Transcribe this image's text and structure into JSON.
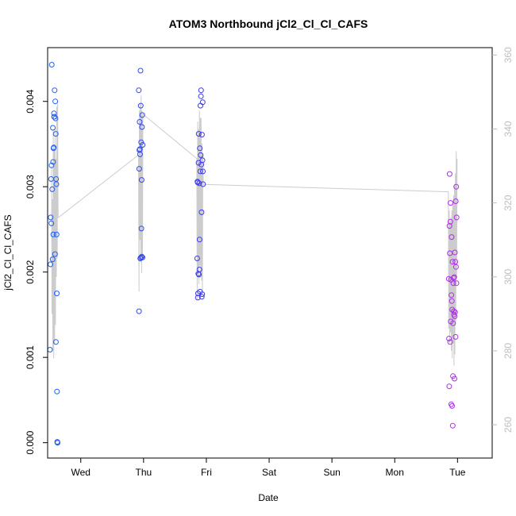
{
  "chart_data": {
    "type": "scatter",
    "title": "ATOM3 Northbound jCl2_Cl_Cl_CAFS",
    "xlabel": "Date",
    "ylabel": "jCl2_Cl_Cl_CAFS",
    "x_ticks": [
      "Wed",
      "Thu",
      "Fri",
      "Sat",
      "Sun",
      "Mon",
      "Tue"
    ],
    "xlim": [
      "2017-10-10T11:20",
      "2017-10-17T13:15"
    ],
    "ylim": [
      -0.00018,
      0.00463
    ],
    "y_ticks": [
      0.0,
      0.001,
      0.002,
      0.003,
      0.004
    ],
    "y_tick_labels": [
      "0.000",
      "0.001",
      "0.002",
      "0.003",
      "0.004"
    ],
    "y2lim": [
      251,
      362
    ],
    "y2_ticks": [
      260,
      280,
      300,
      320,
      340,
      360
    ],
    "y2_tick_labels": [
      "260",
      "280",
      "300",
      "320",
      "340",
      "360"
    ],
    "legend": "none",
    "grid": false,
    "colors": {
      "points_start": "#2060f0",
      "points_middle": "#4a28e8",
      "points_end": "#c030e8",
      "line": "#cccccc",
      "axis": "#000000",
      "secondary_axis": "#bdbdbd"
    },
    "series": [
      {
        "kind": "points",
        "axis": "left",
        "x": [
          "2017-10-10T12:15",
          "2017-10-10T12:25",
          "2017-10-10T12:30",
          "2017-10-10T12:40",
          "2017-10-10T12:45",
          "2017-10-10T12:50",
          "2017-10-10T12:55",
          "2017-10-10T13:05",
          "2017-10-10T13:15",
          "2017-10-10T13:20",
          "2017-10-10T13:25",
          "2017-10-10T13:30",
          "2017-10-10T13:35",
          "2017-10-10T13:40",
          "2017-10-10T13:45",
          "2017-10-10T13:50",
          "2017-10-10T13:55",
          "2017-10-10T14:00",
          "2017-10-10T14:10",
          "2017-10-10T14:15",
          "2017-10-10T14:20",
          "2017-10-10T14:25",
          "2017-10-10T14:30",
          "2017-10-10T14:35",
          "2017-10-10T14:40",
          "2017-10-10T14:45",
          "2017-10-10T14:50",
          "2017-10-10T14:55",
          "2017-10-10T15:00",
          "2017-10-10T15:05",
          "2017-10-10T15:10",
          "2017-10-11T22:10",
          "2017-10-11T22:15",
          "2017-10-11T22:20",
          "2017-10-11T22:25",
          "2017-10-11T22:30",
          "2017-10-11T22:35",
          "2017-10-11T22:40",
          "2017-10-11T22:45",
          "2017-10-11T22:50",
          "2017-10-11T22:55",
          "2017-10-11T23:00",
          "2017-10-11T23:05",
          "2017-10-11T23:10",
          "2017-10-11T23:15",
          "2017-10-11T23:20",
          "2017-10-11T23:25",
          "2017-10-11T23:30",
          "2017-10-11T23:35",
          "2017-10-11T23:40",
          "2017-10-12T20:30",
          "2017-10-12T20:35",
          "2017-10-12T20:40",
          "2017-10-12T20:45",
          "2017-10-12T20:50",
          "2017-10-12T20:55",
          "2017-10-12T21:00",
          "2017-10-12T21:05",
          "2017-10-12T21:10",
          "2017-10-12T21:15",
          "2017-10-12T21:20",
          "2017-10-12T21:25",
          "2017-10-12T21:30",
          "2017-10-12T21:35",
          "2017-10-12T21:40",
          "2017-10-12T21:45",
          "2017-10-12T21:50",
          "2017-10-12T21:55",
          "2017-10-12T22:00",
          "2017-10-12T22:05",
          "2017-10-12T22:10",
          "2017-10-12T22:15",
          "2017-10-12T22:20",
          "2017-10-12T22:25",
          "2017-10-12T22:30",
          "2017-10-12T22:35",
          "2017-10-12T22:40",
          "2017-10-12T22:45",
          "2017-10-16T20:40",
          "2017-10-16T20:45",
          "2017-10-16T20:50",
          "2017-10-16T20:55",
          "2017-10-16T21:00",
          "2017-10-16T21:05",
          "2017-10-16T21:10",
          "2017-10-16T21:15",
          "2017-10-16T21:20",
          "2017-10-16T21:25",
          "2017-10-16T21:30",
          "2017-10-16T21:35",
          "2017-10-16T21:40",
          "2017-10-16T21:45",
          "2017-10-16T21:50",
          "2017-10-16T21:55",
          "2017-10-16T22:00",
          "2017-10-16T22:05",
          "2017-10-16T22:10",
          "2017-10-16T22:15",
          "2017-10-16T22:20",
          "2017-10-16T22:25",
          "2017-10-16T22:30",
          "2017-10-16T22:35",
          "2017-10-16T22:40",
          "2017-10-16T22:45",
          "2017-10-16T22:50",
          "2017-10-16T22:55",
          "2017-10-16T23:00",
          "2017-10-16T23:05",
          "2017-10-16T23:10",
          "2017-10-16T23:15",
          "2017-10-16T23:20",
          "2017-10-16T23:25",
          "2017-10-16T23:30",
          "2017-10-16T23:35",
          "2017-10-16T23:40"
        ],
        "y": [
          0.00109,
          0.00209,
          0.00264,
          0.00309,
          0.00257,
          0.00325,
          0.00443,
          0.00297,
          0.00215,
          0.00369,
          0.00329,
          0.00244,
          0.00345,
          0.00346,
          0.00386,
          0.00382,
          0.00382,
          0.00413,
          0.00221,
          0.004,
          0.0038,
          0.00362,
          0.00118,
          0.00309,
          0.00303,
          0.00244,
          0.00175,
          0.0006,
          1e-05,
          0.0,
          0.0,
          0.00413,
          0.00154,
          0.00321,
          0.00343,
          0.00376,
          0.00344,
          0.00338,
          0.00216,
          0.00436,
          0.00395,
          0.00217,
          0.00352,
          0.00251,
          0.00308,
          0.00218,
          0.0037,
          0.00384,
          0.00217,
          0.00349,
          0.00216,
          0.00306,
          0.00305,
          0.0017,
          0.00175,
          0.00198,
          0.00328,
          0.00362,
          0.00197,
          0.00304,
          0.00203,
          0.00238,
          0.00345,
          0.00177,
          0.00318,
          0.00395,
          0.00337,
          0.00406,
          0.00413,
          0.00326,
          0.0027,
          0.00171,
          0.00361,
          0.00174,
          0.00331,
          0.00399,
          0.00318,
          0.00303,
          0.00192,
          0.00122,
          0.00066,
          0.00254,
          0.00315,
          0.00222,
          0.00118,
          0.00259,
          0.00281,
          0.00142,
          0.00191,
          0.00045,
          0.00173,
          0.00241,
          0.00166,
          0.00043,
          0.00156,
          0.00212,
          0.0002,
          0.00078,
          0.0014,
          0.00187,
          0.00193,
          0.00154,
          0.0015,
          0.00194,
          0.00075,
          0.00148,
          0.00223,
          0.00153,
          0.00212,
          0.00124,
          0.00283,
          0.00206,
          0.003,
          0.00187,
          0.00264
        ]
      },
      {
        "kind": "line",
        "axis": "right",
        "segments": [
          {
            "x": [
              "2017-10-10T12:50",
              "2017-10-10T13:00",
              "2017-10-10T13:10",
              "2017-10-10T13:20",
              "2017-10-10T13:30",
              "2017-10-10T13:40",
              "2017-10-10T13:50",
              "2017-10-10T14:00",
              "2017-10-10T14:10",
              "2017-10-10T14:20",
              "2017-10-10T14:30",
              "2017-10-10T14:40",
              "2017-10-10T14:50",
              "2017-10-10T15:00",
              "2017-10-10T15:10",
              "2017-10-10T15:20"
            ],
            "y": [
              330,
              290,
              321,
              280,
              340,
              278,
              335,
              282,
              340,
              287,
              332,
              300,
              346,
              305,
              347,
              316
            ]
          },
          {
            "x": [
              "2017-10-10T15:20",
              "2017-10-11T22:05",
              "2017-10-11T22:15",
              "2017-10-11T22:25",
              "2017-10-11T22:35",
              "2017-10-11T22:45",
              "2017-10-11T22:55",
              "2017-10-11T23:05",
              "2017-10-11T23:15",
              "2017-10-11T23:25",
              "2017-10-11T23:35",
              "2017-10-11T23:45"
            ],
            "y": [
              316,
              333,
              296,
              345,
              310,
              347,
              304,
              349,
              301,
              345,
              305,
              344
            ]
          },
          {
            "x": [
              "2017-10-11T23:45",
              "2017-10-12T20:20",
              "2017-10-12T20:30",
              "2017-10-12T20:40",
              "2017-10-12T20:50",
              "2017-10-12T21:00",
              "2017-10-12T21:10",
              "2017-10-12T21:20",
              "2017-10-12T21:30",
              "2017-10-12T21:40",
              "2017-10-12T21:50",
              "2017-10-12T22:00",
              "2017-10-12T22:10",
              "2017-10-12T22:20",
              "2017-10-12T22:30",
              "2017-10-12T22:40",
              "2017-10-12T22:50"
            ],
            "y": [
              344,
              332,
              294,
              342,
              300,
              340,
              298,
              345,
              303,
              343,
              301,
              343,
              299,
              336,
              296,
              333,
              325
            ]
          },
          {
            "x": [
              "2017-10-12T22:50",
              "2017-10-16T20:30",
              "2017-10-16T20:40",
              "2017-10-16T20:50",
              "2017-10-16T21:00",
              "2017-10-16T21:10",
              "2017-10-16T21:20",
              "2017-10-16T21:30",
              "2017-10-16T21:40",
              "2017-10-16T21:50",
              "2017-10-16T22:00",
              "2017-10-16T22:10",
              "2017-10-16T22:20",
              "2017-10-16T22:30",
              "2017-10-16T22:40",
              "2017-10-16T22:50",
              "2017-10-16T23:00",
              "2017-10-16T23:10",
              "2017-10-16T23:20",
              "2017-10-16T23:30",
              "2017-10-16T23:40",
              "2017-10-16T23:50"
            ],
            "y": [
              325,
              323,
              286,
              318,
              282,
              315,
              285,
              316,
              280,
              318,
              278,
              320,
              282,
              322,
              276,
              325,
              279,
              328,
              288,
              334,
              300,
              332
            ]
          }
        ]
      }
    ]
  }
}
